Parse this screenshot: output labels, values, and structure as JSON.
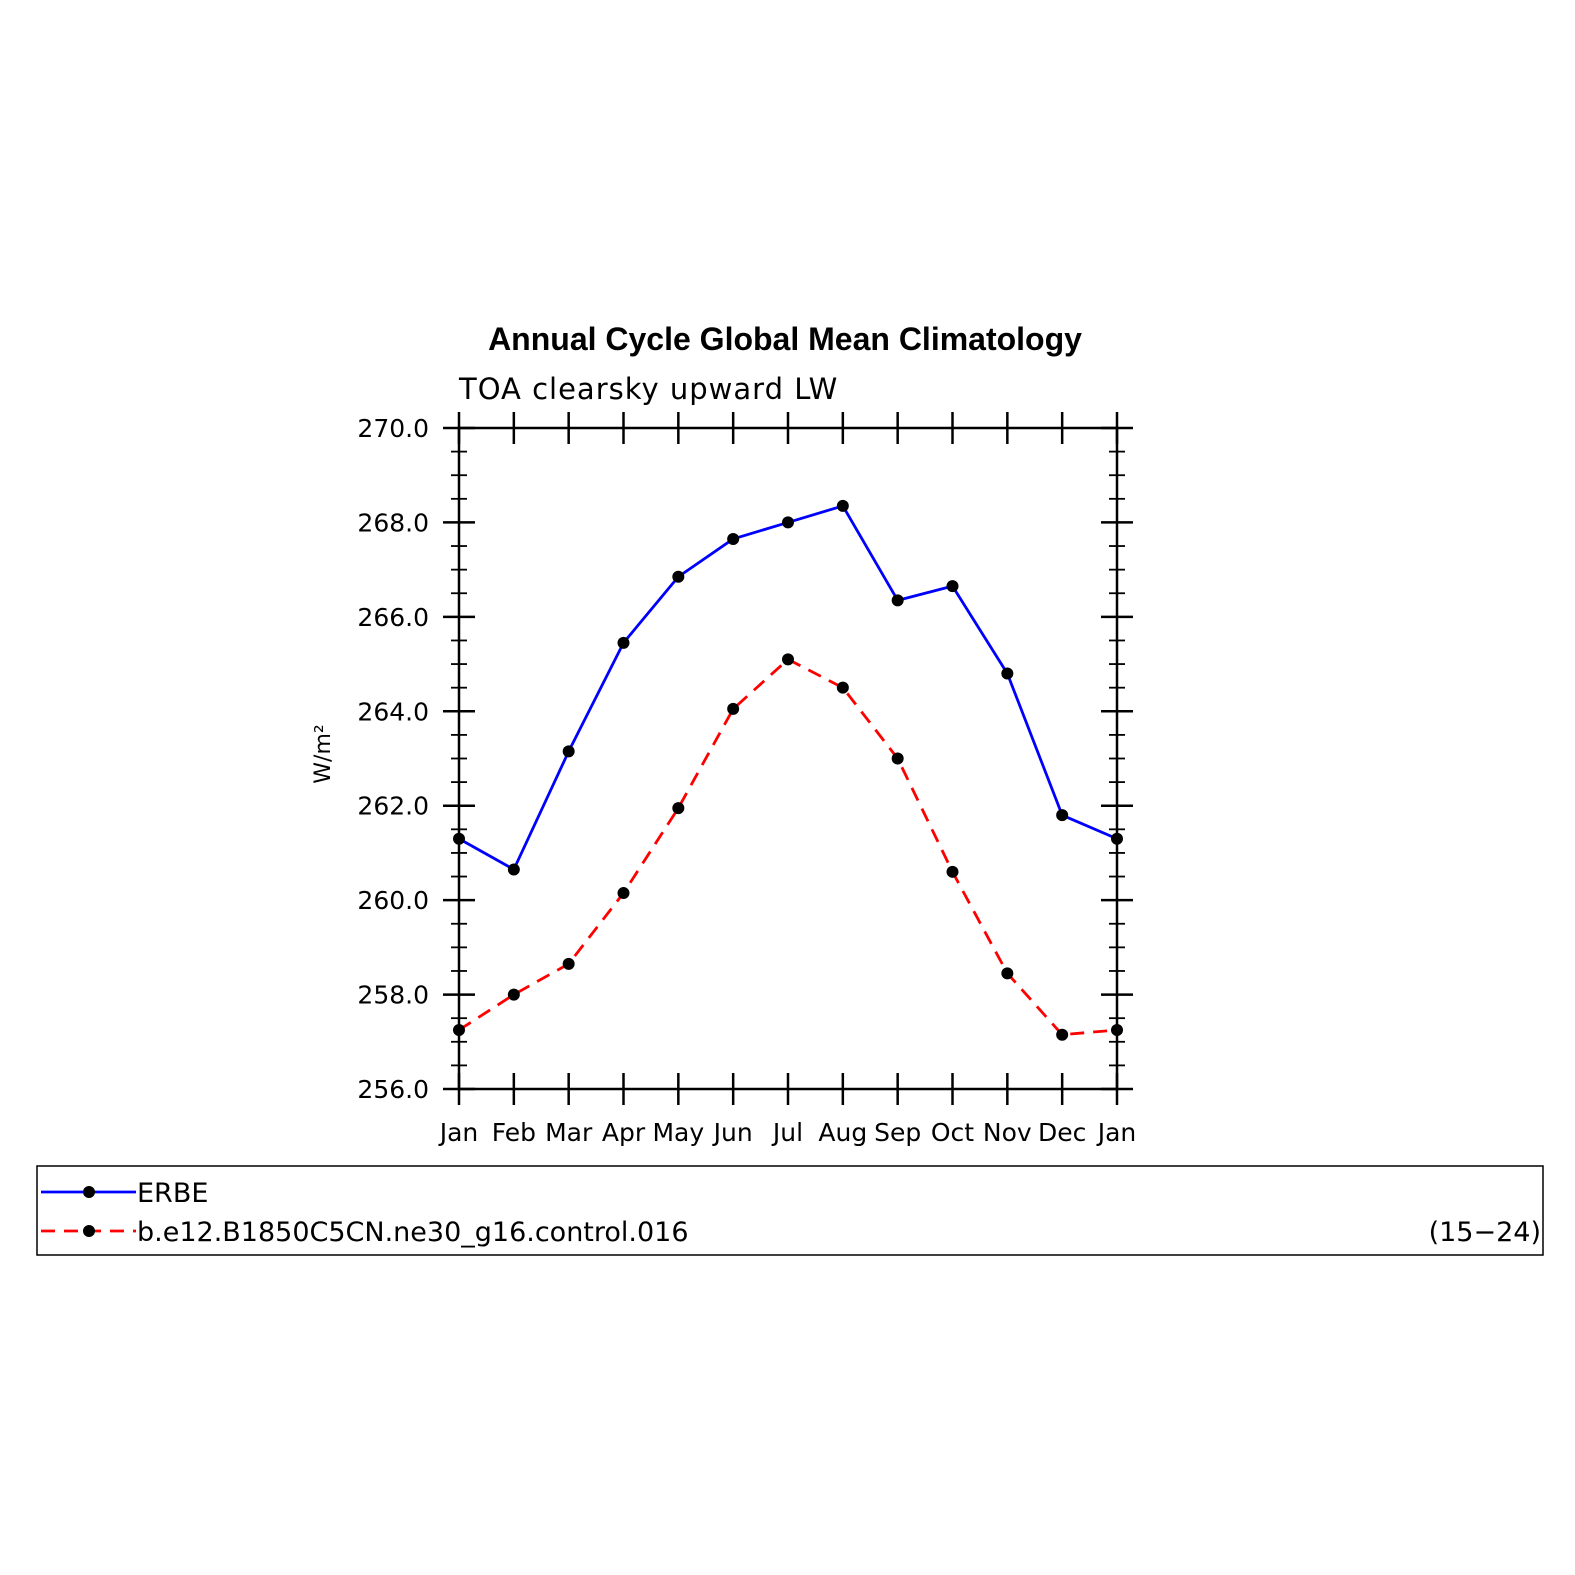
{
  "chart_data": {
    "type": "line",
    "title": "Annual Cycle Global Mean Climatology",
    "subtitle": "TOA clearsky upward LW",
    "ylabel": "W/m²",
    "xlabel": "",
    "categories": [
      "Jan",
      "Feb",
      "Mar",
      "Apr",
      "May",
      "Jun",
      "Jul",
      "Aug",
      "Sep",
      "Oct",
      "Nov",
      "Dec",
      "Jan"
    ],
    "ylim": [
      256.0,
      270.0
    ],
    "yticks": [
      "256.0",
      "258.0",
      "260.0",
      "262.0",
      "264.0",
      "266.0",
      "268.0",
      "270.0"
    ],
    "grid": false,
    "legend_placement": "bottom",
    "legend_note": "(15−24)",
    "series": [
      {
        "name": "ERBE",
        "color": "#0000ff",
        "dash": "solid",
        "values": [
          261.3,
          260.65,
          263.15,
          265.45,
          266.85,
          267.65,
          268.0,
          268.35,
          266.35,
          266.65,
          264.8,
          261.8,
          261.3
        ]
      },
      {
        "name": "b.e12.B1850C5CN.ne30_g16.control.016",
        "color": "#ff0000",
        "dash": "dashed",
        "values": [
          257.25,
          258.0,
          258.65,
          260.15,
          261.95,
          264.05,
          265.1,
          264.5,
          263.0,
          260.6,
          258.45,
          257.15,
          257.25
        ]
      }
    ]
  }
}
